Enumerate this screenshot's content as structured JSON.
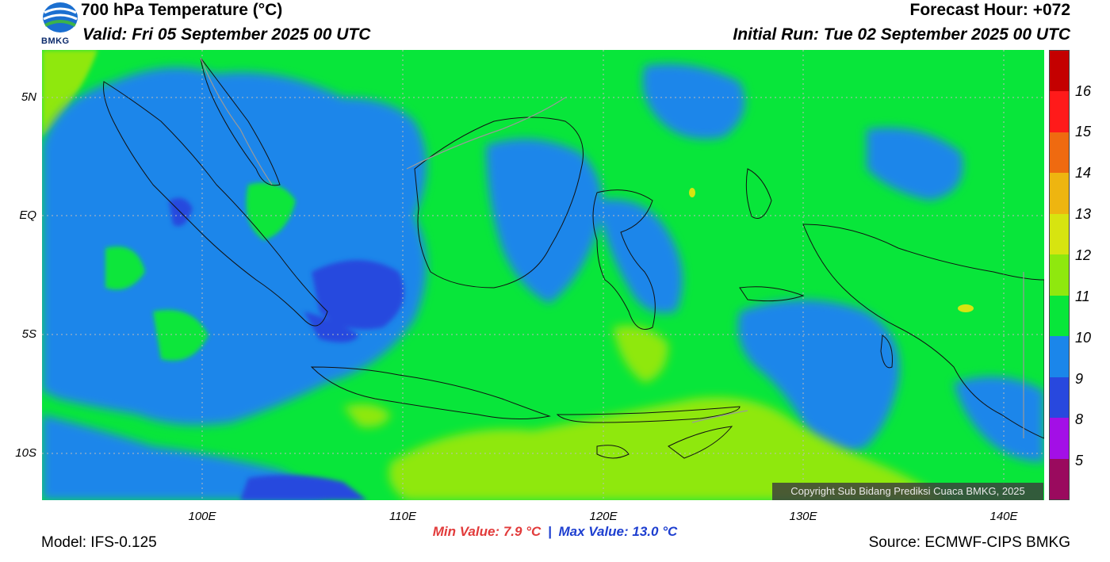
{
  "header": {
    "title": "700 hPa Temperature (°C)",
    "valid": "Valid: Fri 05 September 2025 00 UTC",
    "forecast_hour": "Forecast Hour: +072",
    "initial_run": "Initial Run: Tue 02 September 2025 00 UTC"
  },
  "logo": {
    "text": "BMKG",
    "icon": "bmkg-logo-icon"
  },
  "map": {
    "lat_labels": [
      "5N",
      "EQ",
      "5S",
      "10S"
    ],
    "lon_labels": [
      "100E",
      "110E",
      "120E",
      "130E",
      "140E"
    ],
    "lon_range": [
      92,
      142
    ],
    "lat_range": [
      -12,
      7
    ],
    "copyright": "Copyright Sub Bidang Prediksi Cuaca BMKG, 2025"
  },
  "legend": {
    "labels": [
      "16",
      "15",
      "14",
      "13",
      "12",
      "11",
      "10",
      "9",
      "8",
      "5"
    ],
    "colors": [
      "#c40000",
      "#ff1a1a",
      "#ef6a10",
      "#eeb510",
      "#d7e410",
      "#8fe80e",
      "#08e63a",
      "#1b86ea",
      "#2848de",
      "#a30fe6",
      "#9a0a5e"
    ]
  },
  "stats": {
    "min": "Min Value: 7.9 °C",
    "separator": "|",
    "max": "Max Value: 13.0 °C"
  },
  "footer": {
    "model": "Model: IFS-0.125",
    "source": "Source: ECMWF-CIPS BMKG"
  }
}
